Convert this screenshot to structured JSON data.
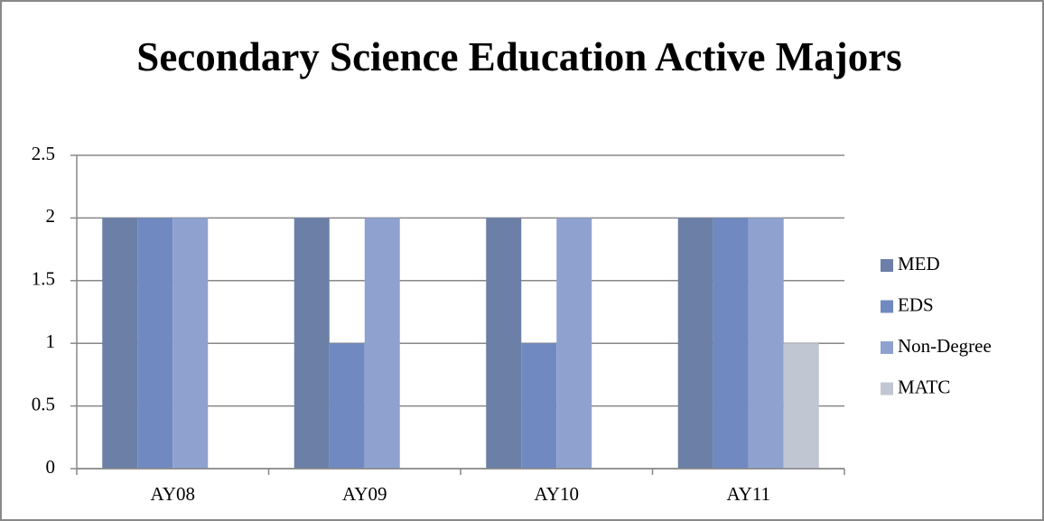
{
  "chart_data": {
    "type": "bar",
    "title": "Secondary Science Education Active Majors",
    "categories": [
      "AY08",
      "AY09",
      "AY10",
      "AY11"
    ],
    "series": [
      {
        "name": "MED",
        "color": "#6b7fa7",
        "values": [
          2,
          2,
          2,
          2
        ]
      },
      {
        "name": "EDS",
        "color": "#7089c1",
        "values": [
          2,
          1,
          1,
          2
        ]
      },
      {
        "name": "Non-Degree",
        "color": "#8fa2cf",
        "values": [
          2,
          2,
          2,
          2
        ]
      },
      {
        "name": "MATC",
        "color": "#c1c6d3",
        "values": [
          0,
          0,
          0,
          1
        ]
      }
    ],
    "ylim": [
      0,
      2.5
    ],
    "yticks": [
      0,
      0.5,
      1,
      1.5,
      2,
      2.5
    ],
    "grid": true,
    "legend": "right"
  }
}
